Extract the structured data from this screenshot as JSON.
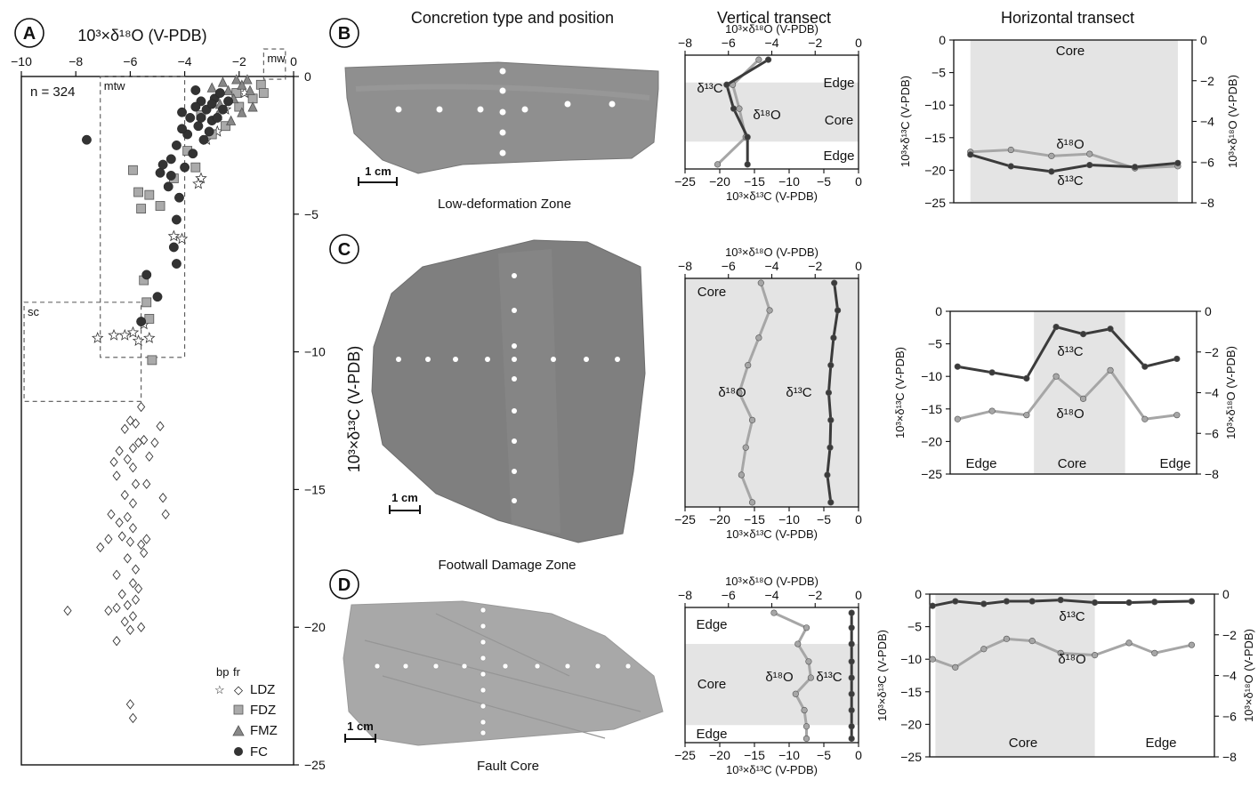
{
  "headers": {
    "concretion": "Concretion type and position",
    "vertical": "Vertical transect",
    "horizontal": "Horizontal transect"
  },
  "panel_labels": {
    "A": "A",
    "B": "B",
    "C": "C",
    "D": "D"
  },
  "zone_labels": {
    "B": "Low-deformation Zone",
    "C": "Footwall Damage Zone",
    "D": "Fault Core"
  },
  "scale_bar": "1 cm",
  "legend": {
    "title_bp": "bp",
    "title_fr": "fr",
    "items": [
      "LDZ",
      "FDZ",
      "FMZ",
      "FC"
    ]
  },
  "box_labels": {
    "mw": "mw",
    "mtw": "mtw",
    "sc": "sc"
  },
  "chart_data": [
    {
      "id": "A",
      "type": "scatter",
      "xlabel": "10³×δ¹⁸O (V-PDB)",
      "ylabel": "10³×δ¹³C (V-PDB)",
      "xlim": [
        -10,
        0
      ],
      "ylim": [
        -25,
        0
      ],
      "xticks": [
        -10,
        -8,
        -6,
        -4,
        -2,
        0
      ],
      "yticks": [
        0,
        -5,
        -10,
        -15,
        -20,
        -25
      ],
      "annotation": "n = 324",
      "boxes": [
        {
          "name": "mw",
          "x": [
            -1.1,
            -0.3
          ],
          "y": [
            -0.1,
            1.0
          ]
        },
        {
          "name": "mtw",
          "x": [
            -7.1,
            -4.0
          ],
          "y": [
            -10.2,
            0
          ]
        },
        {
          "name": "sc",
          "x": [
            -9.9,
            -5.6
          ],
          "y": [
            -11.8,
            -8.2
          ]
        }
      ],
      "series": [
        {
          "name": "LDZ",
          "marker": "diamond",
          "points": [
            [
              -5.6,
              -12
            ],
            [
              -6,
              -12.5
            ],
            [
              -5.8,
              -12.6
            ],
            [
              -6.2,
              -12.8
            ],
            [
              -5.5,
              -13.2
            ],
            [
              -4.9,
              -12.7
            ],
            [
              -5.9,
              -13.5
            ],
            [
              -6.4,
              -13.6
            ],
            [
              -6.1,
              -13.9
            ],
            [
              -5.7,
              -13.3
            ],
            [
              -5.3,
              -13.8
            ],
            [
              -5.1,
              -13.3
            ],
            [
              -6.6,
              -14
            ],
            [
              -5.9,
              -14.2
            ],
            [
              -6.5,
              -14.5
            ],
            [
              -5.8,
              -14.8
            ],
            [
              -5.4,
              -14.8
            ],
            [
              -6.2,
              -15.2
            ],
            [
              -5.9,
              -15.5
            ],
            [
              -4.8,
              -15.3
            ],
            [
              -6.7,
              -15.9
            ],
            [
              -6.4,
              -16.2
            ],
            [
              -6.1,
              -16
            ],
            [
              -5.9,
              -16.4
            ],
            [
              -4.7,
              -15.9
            ],
            [
              -6.8,
              -16.8
            ],
            [
              -6.3,
              -16.7
            ],
            [
              -6,
              -16.9
            ],
            [
              -5.6,
              -17
            ],
            [
              -5.4,
              -16.8
            ],
            [
              -5.5,
              -17.3
            ],
            [
              -7.1,
              -17.1
            ],
            [
              -6.1,
              -17.5
            ],
            [
              -5.8,
              -17.9
            ],
            [
              -6.5,
              -18.1
            ],
            [
              -5.9,
              -18.4
            ],
            [
              -6.3,
              -18.8
            ],
            [
              -5.7,
              -18.6
            ],
            [
              -5.8,
              -19
            ],
            [
              -6.1,
              -19.2
            ],
            [
              -6.5,
              -19.3
            ],
            [
              -6.8,
              -19.4
            ],
            [
              -5.9,
              -19.6
            ],
            [
              -6.2,
              -19.8
            ],
            [
              -5.6,
              -20
            ],
            [
              -6,
              -20.1
            ],
            [
              -6.5,
              -20.5
            ],
            [
              -8.3,
              -19.4
            ],
            [
              -6,
              -22.8
            ],
            [
              -5.9,
              -23.3
            ]
          ]
        },
        {
          "name": "LDZ-bp",
          "marker": "star",
          "points": [
            [
              -3.2,
              -2.3
            ],
            [
              -2.8,
              -2.0
            ],
            [
              -3.4,
              -3.7
            ],
            [
              -3.5,
              -3.9
            ],
            [
              -4.1,
              -5.9
            ],
            [
              -4.4,
              -5.8
            ],
            [
              -5.5,
              -9.0
            ],
            [
              -5.9,
              -9.3
            ],
            [
              -6.2,
              -9.4
            ],
            [
              -6.6,
              -9.4
            ],
            [
              -7.2,
              -9.5
            ],
            [
              -5.7,
              -9.6
            ],
            [
              -5.3,
              -9.5
            ],
            [
              -1.8,
              -0.6
            ],
            [
              -2.5,
              -1.2
            ]
          ]
        },
        {
          "name": "FDZ",
          "marker": "square",
          "points": [
            [
              -5.4,
              -8.2
            ],
            [
              -5.3,
              -8.8
            ],
            [
              -5.2,
              -10.3
            ],
            [
              -5.5,
              -7.4
            ],
            [
              -5.9,
              -3.4
            ],
            [
              -5.7,
              -4.2
            ],
            [
              -5.6,
              -4.8
            ],
            [
              -5.3,
              -4.3
            ],
            [
              -4.9,
              -4.7
            ],
            [
              -4.4,
              -3.7
            ],
            [
              -3.6,
              -3.3
            ],
            [
              -2.5,
              -1.8
            ],
            [
              -2.0,
              -1.1
            ],
            [
              -1.5,
              -0.8
            ],
            [
              -1.2,
              -0.3
            ],
            [
              -1.1,
              -0.6
            ],
            [
              -3.0,
              -2.1
            ],
            [
              -3.4,
              -1.4
            ],
            [
              -2.1,
              -0.6
            ],
            [
              -3.9,
              -2.7
            ]
          ]
        },
        {
          "name": "FMZ",
          "marker": "triangle",
          "points": [
            [
              -1.7,
              -0.1
            ],
            [
              -1.9,
              -0.3
            ],
            [
              -2.1,
              -0.1
            ],
            [
              -2.4,
              -0.5
            ],
            [
              -2.6,
              -0.2
            ],
            [
              -2.2,
              -0.8
            ],
            [
              -1.6,
              -0.5
            ],
            [
              -1.9,
              -1.3
            ],
            [
              -2.7,
              -1.0
            ],
            [
              -3.0,
              -0.4
            ],
            [
              -2.8,
              -1.4
            ],
            [
              -1.5,
              -1.1
            ],
            [
              -2.3,
              -1.6
            ]
          ]
        },
        {
          "name": "FC",
          "marker": "circle",
          "points": [
            [
              -3.6,
              -0.5
            ],
            [
              -3.4,
              -0.9
            ],
            [
              -3.2,
              -1.2
            ],
            [
              -2.9,
              -0.8
            ],
            [
              -3.8,
              -1.5
            ],
            [
              -4.1,
              -1.3
            ],
            [
              -3.5,
              -1.8
            ],
            [
              -3.0,
              -1.6
            ],
            [
              -2.6,
              -1.2
            ],
            [
              -2.4,
              -0.9
            ],
            [
              -3.9,
              -2.1
            ],
            [
              -3.3,
              -2.3
            ],
            [
              -4.3,
              -2.5
            ],
            [
              -3.7,
              -2.8
            ],
            [
              -4.5,
              -3.0
            ],
            [
              -4.0,
              -3.3
            ],
            [
              -4.9,
              -3.5
            ],
            [
              -4.6,
              -4.0
            ],
            [
              -4.2,
              -4.4
            ],
            [
              -4.3,
              -5.2
            ],
            [
              -4.4,
              -6.2
            ],
            [
              -4.3,
              -6.8
            ],
            [
              -5.4,
              -7.2
            ],
            [
              -5.0,
              -8.0
            ],
            [
              -5.6,
              -8.9
            ],
            [
              -7.6,
              -2.3
            ],
            [
              -3.1,
              -2.0
            ],
            [
              -2.8,
              -1.5
            ],
            [
              -3.6,
              -1.1
            ],
            [
              -4.1,
              -1.9
            ],
            [
              -3.4,
              -1.5
            ],
            [
              -3.0,
              -1.0
            ],
            [
              -2.7,
              -0.6
            ],
            [
              -4.5,
              -3.6
            ],
            [
              -4.8,
              -3.2
            ]
          ]
        }
      ]
    },
    {
      "id": "B-vertical",
      "type": "line",
      "x_top_label": "10³×δ¹⁸O (V-PDB)",
      "x_bottom_label": "10³×δ¹³C (V-PDB)",
      "x_top_range": [
        -8,
        0
      ],
      "x_bottom_range": [
        -25,
        0
      ],
      "x_top_ticks": [
        -8,
        -6,
        -4,
        -2,
        0
      ],
      "x_bottom_ticks": [
        -25,
        -20,
        -15,
        -10,
        -5,
        0
      ],
      "regions": [
        "Edge",
        "Core",
        "Edge"
      ],
      "core_band": [
        0.24,
        0.76
      ],
      "series": [
        {
          "name": "δ¹³C",
          "position": [
            0.04,
            0.26,
            0.47,
            0.72,
            0.96
          ],
          "values": [
            -13,
            -19,
            -18,
            -16,
            -16
          ]
        },
        {
          "name": "δ¹⁸O",
          "position": [
            0.04,
            0.26,
            0.47,
            0.72,
            0.96
          ],
          "values": [
            -4.6,
            -5.8,
            -5.5,
            -5.2,
            -6.5
          ]
        }
      ]
    },
    {
      "id": "C-vertical",
      "type": "line",
      "x_top_label": "10³×δ¹⁸O (V-PDB)",
      "x_bottom_label": "10³×δ¹³C (V-PDB)",
      "x_top_range": [
        -8,
        0
      ],
      "x_bottom_range": [
        -25,
        0
      ],
      "x_top_ticks": [
        -8,
        -6,
        -4,
        -2,
        0
      ],
      "x_bottom_ticks": [
        -25,
        -20,
        -15,
        -10,
        -5,
        0
      ],
      "regions": [
        "Core"
      ],
      "core_band": [
        0.0,
        1.0
      ],
      "series": [
        {
          "name": "δ¹³C",
          "position": [
            0.02,
            0.14,
            0.26,
            0.38,
            0.5,
            0.62,
            0.74,
            0.86,
            0.98
          ],
          "values": [
            -3.5,
            -3,
            -3.6,
            -4,
            -4.3,
            -4,
            -4.1,
            -4.5,
            -4
          ]
        },
        {
          "name": "δ¹⁸O",
          "position": [
            0.02,
            0.14,
            0.26,
            0.38,
            0.5,
            0.62,
            0.74,
            0.86,
            0.98
          ],
          "values": [
            -4.5,
            -4.1,
            -4.6,
            -5.1,
            -5.5,
            -4.9,
            -5.2,
            -5.4,
            -4.9
          ]
        }
      ]
    },
    {
      "id": "D-vertical",
      "type": "line",
      "x_top_label": "10³×δ¹⁸O (V-PDB)",
      "x_bottom_label": "10³×δ¹³C (V-PDB)",
      "x_top_range": [
        -8,
        0
      ],
      "x_bottom_range": [
        -25,
        0
      ],
      "x_top_ticks": [
        -8,
        -6,
        -4,
        -2,
        0
      ],
      "x_bottom_ticks": [
        -25,
        -20,
        -15,
        -10,
        -5,
        0
      ],
      "regions": [
        "Edge",
        "Core",
        "Edge"
      ],
      "core_band": [
        0.27,
        0.87
      ],
      "series": [
        {
          "name": "δ¹³C",
          "position": [
            0.04,
            0.15,
            0.27,
            0.4,
            0.52,
            0.64,
            0.76,
            0.88,
            0.97
          ],
          "values": [
            -1,
            -1,
            -1,
            -1,
            -1,
            -1,
            -1,
            -1,
            -1
          ]
        },
        {
          "name": "δ¹⁸O",
          "position": [
            0.04,
            0.15,
            0.27,
            0.4,
            0.52,
            0.64,
            0.76,
            0.88,
            0.97
          ],
          "values": [
            -3.9,
            -2.4,
            -2.8,
            -2.3,
            -2.2,
            -2.9,
            -2.5,
            -2.4,
            -2.4
          ]
        }
      ]
    },
    {
      "id": "B-horizontal",
      "type": "line",
      "ylabel_left": "10³×δ¹³C (V-PDB)",
      "ylabel_right": "10³×δ¹⁸O (V-PDB)",
      "ylim_left": [
        -25,
        0
      ],
      "ylim_right": [
        -8,
        0
      ],
      "yticks_left": [
        0,
        -5,
        -10,
        -15,
        -20,
        -25
      ],
      "yticks_right": [
        0,
        -2,
        -4,
        -6,
        -8
      ],
      "regions": [
        "Core"
      ],
      "core_band": [
        0.07,
        0.94
      ],
      "series": [
        {
          "name": "δ¹³C",
          "position": [
            0.07,
            0.24,
            0.41,
            0.57,
            0.76,
            0.94
          ],
          "values": [
            -17.6,
            -19.4,
            -20.2,
            -19.2,
            -19.5,
            -18.9
          ]
        },
        {
          "name": "δ¹⁸O",
          "position": [
            0.07,
            0.24,
            0.41,
            0.57,
            0.76,
            0.94
          ],
          "values": [
            -5.5,
            -5.4,
            -5.7,
            -5.6,
            -6.3,
            -6.2
          ]
        }
      ]
    },
    {
      "id": "C-horizontal",
      "type": "line",
      "ylabel_left": "10³×δ¹³C (V-PDB)",
      "ylabel_right": "10³×δ¹⁸O (V-PDB)",
      "ylim_left": [
        -25,
        0
      ],
      "ylim_right": [
        -8,
        0
      ],
      "yticks_left": [
        0,
        -5,
        -10,
        -15,
        -20,
        -25
      ],
      "yticks_right": [
        0,
        -2,
        -4,
        -6,
        -8
      ],
      "regions": [
        "Edge",
        "Core",
        "Edge"
      ],
      "core_band": [
        0.34,
        0.71
      ],
      "series": [
        {
          "name": "δ¹³C",
          "position": [
            0.03,
            0.17,
            0.31,
            0.43,
            0.54,
            0.65,
            0.79,
            0.92
          ],
          "values": [
            -8.5,
            -9.4,
            -10.3,
            -2.4,
            -3.5,
            -2.7,
            -8.5,
            -7.3
          ]
        },
        {
          "name": "δ¹⁸O",
          "position": [
            0.03,
            0.17,
            0.31,
            0.43,
            0.54,
            0.65,
            0.79,
            0.92
          ],
          "values": [
            -5.3,
            -4.9,
            -5.1,
            -3.2,
            -4.3,
            -2.9,
            -5.3,
            -5.1
          ]
        }
      ]
    },
    {
      "id": "D-horizontal",
      "type": "line",
      "ylabel_left": "10³×δ¹³C (V-PDB)",
      "ylabel_right": "10³×δ¹⁸O (V-PDB)",
      "ylim_left": [
        -25,
        0
      ],
      "ylim_right": [
        -8,
        0
      ],
      "yticks_left": [
        0,
        -5,
        -10,
        -15,
        -20,
        -25
      ],
      "yticks_right": [
        0,
        -2,
        -4,
        -6,
        -8
      ],
      "regions": [
        "Core",
        "Edge"
      ],
      "core_band": [
        0.02,
        0.58
      ],
      "series": [
        {
          "name": "δ¹³C",
          "position": [
            0.01,
            0.09,
            0.19,
            0.27,
            0.36,
            0.46,
            0.58,
            0.7,
            0.79,
            0.92
          ],
          "values": [
            -1.8,
            -1.1,
            -1.5,
            -1.1,
            -1.1,
            -0.9,
            -1.3,
            -1.3,
            -1.2,
            -1.1
          ]
        },
        {
          "name": "δ¹⁸O",
          "position": [
            0.01,
            0.09,
            0.19,
            0.27,
            0.36,
            0.46,
            0.58,
            0.7,
            0.79,
            0.92
          ],
          "values": [
            -3.2,
            -3.6,
            -2.7,
            -2.2,
            -2.3,
            -2.9,
            -3.0,
            -2.4,
            -2.9,
            -2.5
          ]
        }
      ]
    }
  ],
  "colors": {
    "c13": "#3b3b3b",
    "o18": "#a6a6a6",
    "band": "#e4e4e4",
    "rock": "#8a8a8a"
  }
}
